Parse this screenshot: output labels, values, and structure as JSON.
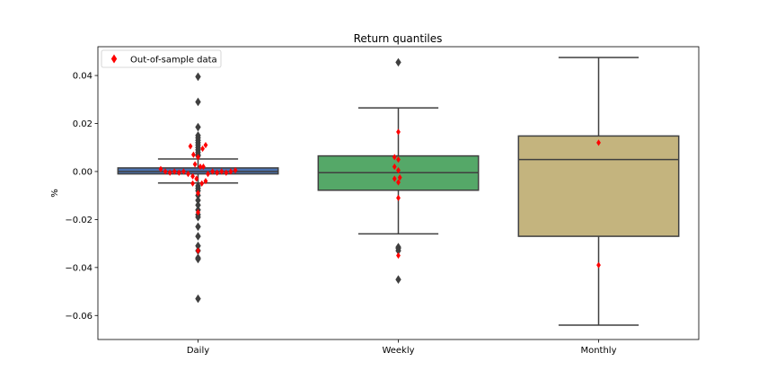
{
  "chart_data": {
    "type": "box",
    "title": "Return quantiles",
    "ylabel": "%",
    "xlabel": "",
    "ylim": [
      -0.07,
      0.052
    ],
    "yticks": [
      0.04,
      0.02,
      0.0,
      -0.02,
      -0.04,
      -0.06
    ],
    "ytick_labels": [
      "0.04",
      "0.02",
      "0.00",
      "−0.02",
      "−0.04",
      "−0.06"
    ],
    "categories": [
      "Daily",
      "Weekly",
      "Monthly"
    ],
    "legend": {
      "label": "Out-of-sample data",
      "position": "upper left",
      "color": "#ff0000"
    },
    "boxes": [
      {
        "name": "Daily",
        "color": "#4c72b0",
        "q1": -0.001,
        "median": 0.0,
        "q3": 0.0015,
        "whisker_low": -0.0048,
        "whisker_high": 0.0052,
        "outliers": [
          0.0395,
          0.029,
          0.0185,
          0.015,
          0.014,
          0.013,
          0.012,
          0.011,
          0.01,
          0.009,
          0.008,
          0.007,
          0.0065,
          -0.006,
          -0.007,
          -0.008,
          -0.01,
          -0.012,
          -0.014,
          -0.016,
          -0.018,
          -0.019,
          -0.023,
          -0.027,
          -0.031,
          -0.033,
          -0.036,
          -0.0365,
          -0.053
        ]
      },
      {
        "name": "Weekly",
        "color": "#55a868",
        "q1": -0.0078,
        "median": -0.0005,
        "q3": 0.0065,
        "whisker_low": -0.026,
        "whisker_high": 0.0265,
        "outliers": [
          0.0455,
          -0.0315,
          -0.032,
          -0.033,
          -0.045
        ]
      },
      {
        "name": "Monthly",
        "color": "#c4b47e",
        "q1": -0.027,
        "median": 0.005,
        "q3": 0.0148,
        "whisker_low": -0.064,
        "whisker_high": 0.0475,
        "outliers": []
      }
    ],
    "oos_points": [
      {
        "group": "Daily",
        "x": -0.49,
        "y": 0.001
      },
      {
        "group": "Daily",
        "x": -0.43,
        "y": 0.0
      },
      {
        "group": "Daily",
        "x": -0.37,
        "y": -0.0005
      },
      {
        "group": "Daily",
        "x": -0.31,
        "y": 0.0
      },
      {
        "group": "Daily",
        "x": -0.25,
        "y": -0.0005
      },
      {
        "group": "Daily",
        "x": -0.19,
        "y": 0.0
      },
      {
        "group": "Daily",
        "x": -0.13,
        "y": -0.001
      },
      {
        "group": "Daily",
        "x": -0.07,
        "y": -0.002
      },
      {
        "group": "Daily",
        "x": -0.1,
        "y": 0.0105
      },
      {
        "group": "Daily",
        "x": -0.06,
        "y": 0.007
      },
      {
        "group": "Daily",
        "x": -0.04,
        "y": 0.003
      },
      {
        "group": "Daily",
        "x": -0.02,
        "y": -0.003
      },
      {
        "group": "Daily",
        "x": -0.07,
        "y": -0.005
      },
      {
        "group": "Daily",
        "x": 0.0,
        "y": 0.006
      },
      {
        "group": "Daily",
        "x": 0.0,
        "y": -0.009
      },
      {
        "group": "Daily",
        "x": 0.0,
        "y": -0.017
      },
      {
        "group": "Daily",
        "x": 0.0,
        "y": -0.033
      },
      {
        "group": "Daily",
        "x": 0.03,
        "y": 0.002
      },
      {
        "group": "Daily",
        "x": 0.05,
        "y": -0.005
      },
      {
        "group": "Daily",
        "x": 0.06,
        "y": 0.0095
      },
      {
        "group": "Daily",
        "x": 0.07,
        "y": 0.002
      },
      {
        "group": "Daily",
        "x": 0.1,
        "y": 0.011
      },
      {
        "group": "Daily",
        "x": 0.1,
        "y": -0.004
      },
      {
        "group": "Daily",
        "x": 0.13,
        "y": -0.001
      },
      {
        "group": "Daily",
        "x": 0.19,
        "y": 0.0
      },
      {
        "group": "Daily",
        "x": 0.25,
        "y": -0.0005
      },
      {
        "group": "Daily",
        "x": 0.31,
        "y": 0.0
      },
      {
        "group": "Daily",
        "x": 0.37,
        "y": -0.0005
      },
      {
        "group": "Daily",
        "x": 0.43,
        "y": 0.0
      },
      {
        "group": "Daily",
        "x": 0.49,
        "y": 0.0005
      },
      {
        "group": "Weekly",
        "x": 0.0,
        "y": 0.0165
      },
      {
        "group": "Weekly",
        "x": -0.05,
        "y": 0.006
      },
      {
        "group": "Weekly",
        "x": 0.0,
        "y": 0.005
      },
      {
        "group": "Weekly",
        "x": -0.05,
        "y": 0.002
      },
      {
        "group": "Weekly",
        "x": 0.0,
        "y": 0.0005
      },
      {
        "group": "Weekly",
        "x": -0.05,
        "y": -0.003
      },
      {
        "group": "Weekly",
        "x": 0.0,
        "y": -0.0045
      },
      {
        "group": "Weekly",
        "x": 0.02,
        "y": -0.0025
      },
      {
        "group": "Weekly",
        "x": 0.0,
        "y": -0.011
      },
      {
        "group": "Weekly",
        "x": 0.0,
        "y": -0.035
      },
      {
        "group": "Monthly",
        "x": 0.0,
        "y": 0.012
      },
      {
        "group": "Monthly",
        "x": 0.0,
        "y": -0.039
      }
    ]
  }
}
